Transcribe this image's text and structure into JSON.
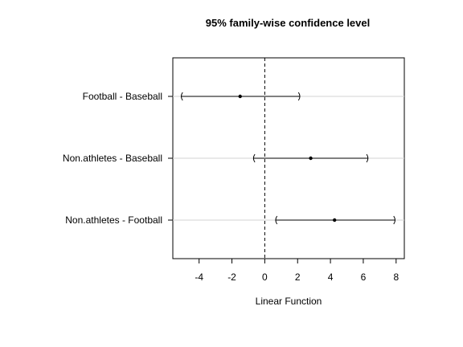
{
  "chart_data": {
    "type": "interval",
    "title": "95% family-wise confidence level",
    "xlabel": "Linear Function",
    "xlim": [
      -5.6,
      8.5
    ],
    "x_ticks": [
      -4,
      -2,
      0,
      2,
      4,
      6,
      8
    ],
    "x_tick_labels": [
      "-4",
      "-2",
      "0",
      "2",
      "4",
      "6",
      "8"
    ],
    "reference_line": {
      "x": 0,
      "style": "dashed"
    },
    "grid": "horizontal",
    "categories": [
      "Football - Baseball",
      "Non.athletes - Baseball",
      "Non.athletes - Football"
    ],
    "estimates": [
      -1.5,
      2.8,
      4.25
    ],
    "lower": [
      -5.1,
      -0.7,
      0.65
    ],
    "upper": [
      2.15,
      6.3,
      7.95
    ]
  }
}
